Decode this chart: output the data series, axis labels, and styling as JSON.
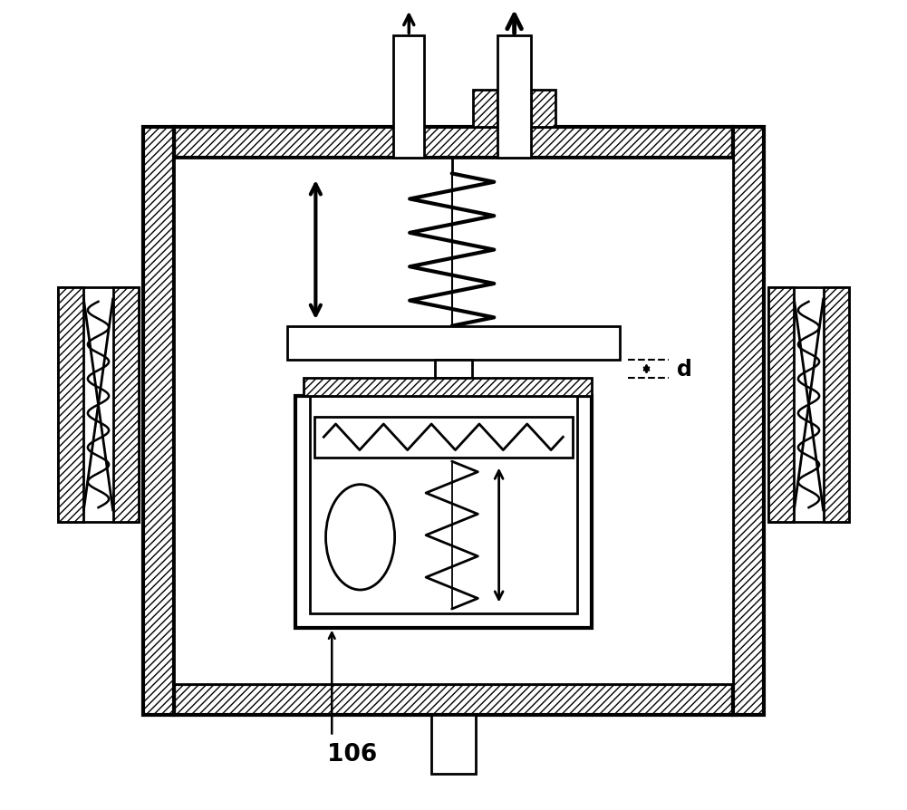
{
  "bg_color": "#ffffff",
  "line_color": "#000000",
  "label_106": "106",
  "label_d": "d",
  "fig_width": 10.01,
  "fig_height": 8.95,
  "dpi": 100
}
